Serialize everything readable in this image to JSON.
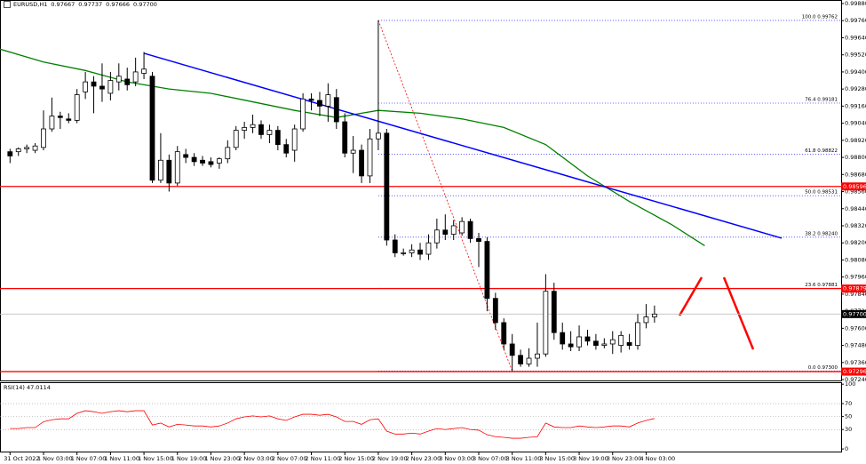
{
  "chart_data": [
    {
      "type": "candlestick",
      "symbol": "EURUSD,H1",
      "header_prices": [
        "0.97667",
        "0.97737",
        "0.97666",
        "0.97700"
      ],
      "up_color": "#ffffff",
      "down_color": "#000000",
      "ohlc": [
        [
          0.9884,
          0.9886,
          0.9876,
          0.9881
        ],
        [
          0.9884,
          0.9887,
          0.9881,
          0.9886
        ],
        [
          0.9886,
          0.9889,
          0.9883,
          0.9887
        ],
        [
          0.9885,
          0.989,
          0.9883,
          0.9888
        ],
        [
          0.9887,
          0.9913,
          0.9885,
          0.99
        ],
        [
          0.99,
          0.9922,
          0.9898,
          0.9909
        ],
        [
          0.9909,
          0.9912,
          0.99,
          0.9908
        ],
        [
          0.9907,
          0.9911,
          0.9904,
          0.9906
        ],
        [
          0.9906,
          0.9928,
          0.9904,
          0.9924
        ],
        [
          0.9926,
          0.994,
          0.9921,
          0.9933
        ],
        [
          0.9933,
          0.9937,
          0.9911,
          0.993
        ],
        [
          0.993,
          0.9946,
          0.9919,
          0.9928
        ],
        [
          0.9925,
          0.994,
          0.992,
          0.9934
        ],
        [
          0.9933,
          0.9946,
          0.9927,
          0.9937
        ],
        [
          0.9935,
          0.9943,
          0.9927,
          0.9931
        ],
        [
          0.9933,
          0.995,
          0.993,
          0.994
        ],
        [
          0.9939,
          0.9954,
          0.9935,
          0.9942
        ],
        [
          0.9937,
          0.994,
          0.9862,
          0.9864
        ],
        [
          0.9864,
          0.9897,
          0.9862,
          0.9878
        ],
        [
          0.9878,
          0.9882,
          0.9856,
          0.9862
        ],
        [
          0.9862,
          0.9888,
          0.986,
          0.9884
        ],
        [
          0.9882,
          0.9886,
          0.9876,
          0.988
        ],
        [
          0.988,
          0.9883,
          0.9874,
          0.9877
        ],
        [
          0.9878,
          0.9881,
          0.9874,
          0.9876
        ],
        [
          0.9877,
          0.988,
          0.9873,
          0.9875
        ],
        [
          0.9876,
          0.988,
          0.9872,
          0.9879
        ],
        [
          0.9879,
          0.9892,
          0.9876,
          0.9887
        ],
        [
          0.9887,
          0.9902,
          0.9885,
          0.9899
        ],
        [
          0.9899,
          0.9905,
          0.9893,
          0.9901
        ],
        [
          0.9901,
          0.991,
          0.9897,
          0.9903
        ],
        [
          0.9903,
          0.9906,
          0.9893,
          0.9896
        ],
        [
          0.9896,
          0.9903,
          0.989,
          0.9899
        ],
        [
          0.9899,
          0.9902,
          0.9885,
          0.9889
        ],
        [
          0.9889,
          0.9893,
          0.988,
          0.9883
        ],
        [
          0.9885,
          0.9903,
          0.9877,
          0.99
        ],
        [
          0.99,
          0.9925,
          0.9898,
          0.9921
        ],
        [
          0.9921,
          0.9925,
          0.9913,
          0.992
        ],
        [
          0.992,
          0.9926,
          0.9909,
          0.9916
        ],
        [
          0.9916,
          0.9932,
          0.9905,
          0.9924
        ],
        [
          0.9922,
          0.9928,
          0.99,
          0.9905
        ],
        [
          0.9905,
          0.9911,
          0.988,
          0.9883
        ],
        [
          0.9883,
          0.9895,
          0.9869,
          0.9885
        ],
        [
          0.9885,
          0.9889,
          0.9862,
          0.9867
        ],
        [
          0.9867,
          0.99,
          0.9862,
          0.9893
        ],
        [
          0.9893,
          0.99762,
          0.9885,
          0.9897
        ],
        [
          0.9897,
          0.99,
          0.9818,
          0.9822
        ],
        [
          0.9822,
          0.9826,
          0.981,
          0.9813
        ],
        [
          0.9813,
          0.9816,
          0.9811,
          0.9813
        ],
        [
          0.9813,
          0.9819,
          0.981,
          0.9815
        ],
        [
          0.9815,
          0.982,
          0.9808,
          0.9812
        ],
        [
          0.9812,
          0.9826,
          0.9808,
          0.982
        ],
        [
          0.982,
          0.9837,
          0.9816,
          0.9829
        ],
        [
          0.9829,
          0.984,
          0.9822,
          0.9826
        ],
        [
          0.9826,
          0.9836,
          0.9822,
          0.9832
        ],
        [
          0.9827,
          0.9838,
          0.9825,
          0.9835
        ],
        [
          0.9835,
          0.9837,
          0.982,
          0.9823
        ],
        [
          0.9823,
          0.9827,
          0.9803,
          0.9821
        ],
        [
          0.9821,
          0.9824,
          0.9772,
          0.9781
        ],
        [
          0.9781,
          0.9785,
          0.9759,
          0.9764
        ],
        [
          0.9764,
          0.9767,
          0.9745,
          0.9749
        ],
        [
          0.9749,
          0.9756,
          0.973,
          0.9741
        ],
        [
          0.9741,
          0.9745,
          0.9733,
          0.9735
        ],
        [
          0.9735,
          0.9746,
          0.9733,
          0.9739
        ],
        [
          0.9739,
          0.9764,
          0.9733,
          0.9742
        ],
        [
          0.9742,
          0.9798,
          0.974,
          0.9786
        ],
        [
          0.9786,
          0.9792,
          0.9752,
          0.9757
        ],
        [
          0.9757,
          0.9764,
          0.9745,
          0.9749
        ],
        [
          0.9749,
          0.9758,
          0.9744,
          0.9747
        ],
        [
          0.9747,
          0.9762,
          0.9744,
          0.9754
        ],
        [
          0.9754,
          0.9759,
          0.9748,
          0.9751
        ],
        [
          0.9751,
          0.9756,
          0.9745,
          0.9748
        ],
        [
          0.9748,
          0.9753,
          0.9746,
          0.9749
        ],
        [
          0.9749,
          0.9758,
          0.9742,
          0.9752
        ],
        [
          0.9748,
          0.9758,
          0.9743,
          0.9755
        ],
        [
          0.975,
          0.9756,
          0.9745,
          0.9748
        ],
        [
          0.9748,
          0.977,
          0.9745,
          0.9764
        ],
        [
          0.9764,
          0.9777,
          0.976,
          0.9768
        ],
        [
          0.9768,
          0.9776,
          0.9764,
          0.977
        ]
      ],
      "xlim": [
        -1.2,
        99.3
      ],
      "xticks": [
        {
          "value": 0,
          "label": "31 Oct 2022"
        },
        {
          "value": 4,
          "label": "1 Nov 03:00"
        },
        {
          "value": 8,
          "label": "1 Nov 07:00"
        },
        {
          "value": 12,
          "label": "1 Nov 11:00"
        },
        {
          "value": 16,
          "label": "1 Nov 15:00"
        },
        {
          "value": 20,
          "label": "1 Nov 19:00"
        },
        {
          "value": 24,
          "label": "1 Nov 23:00"
        },
        {
          "value": 28,
          "label": "2 Nov 03:00"
        },
        {
          "value": 32,
          "label": "2 Nov 07:00"
        },
        {
          "value": 36,
          "label": "2 Nov 11:00"
        },
        {
          "value": 40,
          "label": "2 Nov 15:00"
        },
        {
          "value": 44,
          "label": "2 Nov 19:00"
        },
        {
          "value": 48,
          "label": "2 Nov 23:00"
        },
        {
          "value": 52,
          "label": "3 Nov 03:00"
        },
        {
          "value": 56,
          "label": "3 Nov 07:00"
        },
        {
          "value": 60,
          "label": "3 Nov 11:00"
        },
        {
          "value": 64,
          "label": "3 Nov 15:00"
        },
        {
          "value": 68,
          "label": "3 Nov 19:00"
        },
        {
          "value": 72,
          "label": "3 Nov 23:00"
        },
        {
          "value": 76,
          "label": "4 Nov 03:00"
        }
      ],
      "ylim": [
        0.97234,
        0.99905
      ],
      "yticks": [
        {
          "value": 0.9988,
          "label": "0.99880"
        },
        {
          "value": 0.9976,
          "label": "0.99760"
        },
        {
          "value": 0.9964,
          "label": "0.99640"
        },
        {
          "value": 0.9952,
          "label": "0.99520"
        },
        {
          "value": 0.994,
          "label": "0.99400"
        },
        {
          "value": 0.9928,
          "label": "0.99280"
        },
        {
          "value": 0.9916,
          "label": "0.99160"
        },
        {
          "value": 0.9904,
          "label": "0.99040"
        },
        {
          "value": 0.9892,
          "label": "0.98920"
        },
        {
          "value": 0.988,
          "label": "0.98800"
        },
        {
          "value": 0.9868,
          "label": "0.98680"
        },
        {
          "value": 0.9856,
          "label": "0.98560"
        },
        {
          "value": 0.9844,
          "label": "0.98440"
        },
        {
          "value": 0.9832,
          "label": "0.98320"
        },
        {
          "value": 0.982,
          "label": "0.98200"
        },
        {
          "value": 0.9808,
          "label": "0.98080"
        },
        {
          "value": 0.9796,
          "label": "0.97960"
        },
        {
          "value": 0.9784,
          "label": "0.97840"
        },
        {
          "value": 0.9772,
          "label": "0.97720"
        },
        {
          "value": 0.976,
          "label": "0.97600"
        },
        {
          "value": 0.9748,
          "label": "0.97480"
        },
        {
          "value": 0.9736,
          "label": "0.97360"
        },
        {
          "value": 0.9724,
          "label": "0.97240"
        }
      ],
      "hlines": [
        0.98596,
        0.97879,
        0.97296
      ],
      "hline_color": "#ff0000",
      "current_price": {
        "value": 0.977,
        "label": "0.97700"
      },
      "ma": {
        "color": "#008000",
        "x": [
          -1.2,
          4,
          9,
          14,
          19,
          24,
          29,
          34,
          39,
          44,
          49,
          54,
          59,
          64,
          69,
          74,
          79,
          83
        ],
        "values": [
          0.9956,
          0.9947,
          0.9941,
          0.9933,
          0.9928,
          0.9925,
          0.9919,
          0.9913,
          0.9908,
          0.9913,
          0.9911,
          0.9907,
          0.9901,
          0.9889,
          0.9867,
          0.9849,
          0.9833,
          0.9818
        ]
      },
      "trendline": {
        "color": "#0000ff",
        "x": [
          16,
          92.2
        ],
        "values": [
          0.99531,
          0.98233
        ]
      },
      "fib": {
        "color": "#3a3aff",
        "diagonal_color": "#ff0000",
        "x": [
          44,
          60
        ],
        "values": [
          0.99762,
          0.973
        ],
        "levels": [
          {
            "value": 0.99762,
            "label": "100.0 0.99762"
          },
          {
            "value": 0.99181,
            "label": "76.4 0.99181"
          },
          {
            "value": 0.98822,
            "label": "61.8 0.98822"
          },
          {
            "value": 0.98531,
            "label": "50.0 0.98531"
          },
          {
            "value": 0.9824,
            "label": "38.2 0.98240"
          },
          {
            "value": 0.97881,
            "label": "23.6 0.97881"
          },
          {
            "value": 0.973,
            "label": "0.0 0.97300"
          }
        ]
      }
    },
    {
      "type": "line",
      "title": "RSI(14) 47.0114",
      "color": "#ff0000",
      "values": [
        31.5,
        31.5,
        33,
        33,
        42,
        45,
        46.5,
        46.5,
        55,
        59,
        57.5,
        55,
        57.5,
        59,
        57.5,
        59,
        59,
        37,
        40,
        34,
        38,
        37,
        35.5,
        35.5,
        34,
        35.5,
        40,
        46.5,
        49.5,
        51,
        49.5,
        51,
        46.5,
        44,
        49.5,
        53.5,
        53.5,
        52,
        53.5,
        49.5,
        42.5,
        42.5,
        38,
        45,
        46.5,
        27.5,
        23,
        23,
        24.5,
        23,
        27.5,
        31.5,
        30,
        31.5,
        33,
        30,
        29,
        22,
        19,
        18,
        16.5,
        16.5,
        18,
        19,
        40,
        34,
        33,
        33,
        35.5,
        34,
        33,
        34,
        35.5,
        35.5,
        34,
        40,
        44,
        47
      ],
      "ylim": [
        -4,
        103
      ],
      "yticks": [
        100,
        70,
        50,
        30,
        0
      ],
      "grid": true
    }
  ]
}
